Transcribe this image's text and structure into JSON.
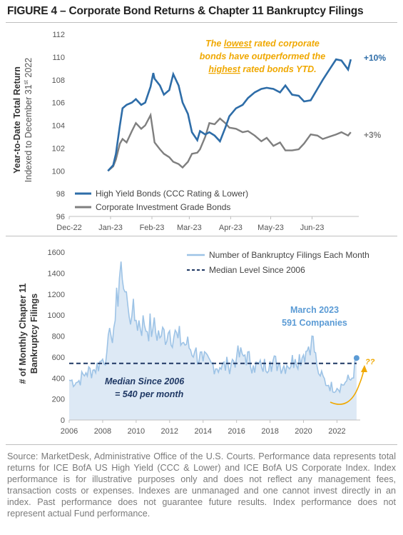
{
  "title": "FIGURE 4 – Corporate Bond Returns & Chapter 11 Bankruptcy Filings",
  "colors": {
    "hy": "#2e6da8",
    "ig": "#7f7f7f",
    "filings": "#9dc3e6",
    "filings_fill": "#dde9f5",
    "median": "#1f3864",
    "callout_text": "#2e6da8",
    "annotation_orange": "#f0a800"
  },
  "top_chart": {
    "ylabel_bold": "Year-to-Date Total Return",
    "ylabel_light_pre": "Indexed to December 31",
    "ylabel_light_sup": "st",
    "ylabel_light_post": " 2022",
    "annotation": {
      "line1_pre": "The ",
      "line1_u": "lowest",
      "line1_post": " rated corporate",
      "line2": "bonds have outperformed the",
      "line3_u": "highest",
      "line3_post": " rated bonds YTD."
    },
    "end_label_hy": "+10%",
    "end_label_ig": "+3%",
    "legend": [
      "High Yield Bonds (CCC Rating & Lower)",
      "Corporate Investment Grade Bonds"
    ]
  },
  "bottom_chart": {
    "ylabel_line1": "# of Monthly Chapter 11",
    "ylabel_line2": "Bankruptcy Filings",
    "legend": [
      "Number of Bankruptcy Filings Each Month",
      "Median Level Since 2006"
    ],
    "callout_line1": "March 2023",
    "callout_line2": "591 Companies",
    "median_line1": "Median Since 2006",
    "median_line2": "= 540 per month",
    "question": "??"
  },
  "source": "Source: MarketDesk, Administrative Office of the U.S. Courts. Performance data represents total returns for ICE BofA US High Yield (CCC & Lower) and ICE BofA US Corporate Index. Index performance is for illustrative purposes only and does not reflect any management fees, transaction costs or expenses. Indexes are unmanaged and one cannot invest directly in an index. Past performance does not guarantee future results. Index performance does not represent actual Fund performance.",
  "chart_data": [
    {
      "type": "line",
      "x_ticks": [
        "Dec-22",
        "Jan-23",
        "Feb-23",
        "Mar-23",
        "Apr-23",
        "May-23",
        "Jun-23"
      ],
      "ylim": [
        96,
        112
      ],
      "y_ticks": [
        96,
        98,
        100,
        102,
        104,
        106,
        108,
        110,
        112
      ],
      "ylabel": "Year-to-Date Total Return",
      "legend_position": "bottom-left",
      "series": [
        {
          "name": "High Yield Bonds (CCC Rating & Lower)",
          "x": [
            "2022-12-30",
            "2023-01-03",
            "2023-01-05",
            "2023-01-08",
            "2023-01-10",
            "2023-01-13",
            "2023-01-17",
            "2023-01-20",
            "2023-01-24",
            "2023-01-27",
            "2023-01-31",
            "2023-02-02",
            "2023-02-03",
            "2023-02-07",
            "2023-02-10",
            "2023-02-14",
            "2023-02-17",
            "2023-02-21",
            "2023-02-24",
            "2023-02-28",
            "2023-03-03",
            "2023-03-07",
            "2023-03-09",
            "2023-03-13",
            "2023-03-16",
            "2023-03-20",
            "2023-03-24",
            "2023-03-28",
            "2023-03-31",
            "2023-04-05",
            "2023-04-10",
            "2023-04-14",
            "2023-04-19",
            "2023-04-24",
            "2023-04-28",
            "2023-05-03",
            "2023-05-08",
            "2023-05-12",
            "2023-05-17",
            "2023-05-22",
            "2023-05-26",
            "2023-05-31",
            "2023-06-05",
            "2023-06-09",
            "2023-06-14",
            "2023-06-19",
            "2023-06-23",
            "2023-06-28",
            "2023-06-30"
          ],
          "values": [
            100,
            100.5,
            101.5,
            104,
            105.5,
            105.8,
            106,
            106.3,
            105.8,
            106,
            107.4,
            108.6,
            108.1,
            107.5,
            106.7,
            107.1,
            108.5,
            107.5,
            106,
            105,
            103.4,
            102.7,
            103.5,
            103.2,
            103.4,
            103.1,
            102.6,
            103.8,
            104.8,
            105.5,
            105.8,
            106.4,
            106.9,
            107.2,
            107.3,
            107.2,
            106.9,
            107.5,
            106.7,
            106.6,
            106.1,
            106.2,
            107.2,
            108,
            108.9,
            109.8,
            109.7,
            108.9,
            109.8
          ]
        },
        {
          "name": "Corporate Investment Grade Bonds",
          "x": [
            "2022-12-30",
            "2023-01-03",
            "2023-01-05",
            "2023-01-08",
            "2023-01-10",
            "2023-01-13",
            "2023-01-17",
            "2023-01-20",
            "2023-01-24",
            "2023-01-27",
            "2023-01-31",
            "2023-02-02",
            "2023-02-03",
            "2023-02-07",
            "2023-02-10",
            "2023-02-14",
            "2023-02-17",
            "2023-02-21",
            "2023-02-24",
            "2023-02-28",
            "2023-03-03",
            "2023-03-07",
            "2023-03-09",
            "2023-03-13",
            "2023-03-16",
            "2023-03-20",
            "2023-03-24",
            "2023-03-28",
            "2023-03-31",
            "2023-04-05",
            "2023-04-10",
            "2023-04-14",
            "2023-04-19",
            "2023-04-24",
            "2023-04-28",
            "2023-05-03",
            "2023-05-08",
            "2023-05-12",
            "2023-05-17",
            "2023-05-22",
            "2023-05-26",
            "2023-05-31",
            "2023-06-05",
            "2023-06-09",
            "2023-06-14",
            "2023-06-19",
            "2023-06-23",
            "2023-06-28",
            "2023-06-30"
          ],
          "values": [
            100,
            100.4,
            101,
            102.4,
            102.8,
            102.5,
            103.5,
            104.2,
            103.7,
            104,
            104.9,
            103.3,
            102.5,
            101.9,
            101.5,
            101.2,
            100.8,
            100.6,
            100.3,
            100.8,
            101.5,
            101.6,
            101.9,
            103,
            104.2,
            104.1,
            104.6,
            104.2,
            103.8,
            103.7,
            103.4,
            103.5,
            103.1,
            102.6,
            102.9,
            102.2,
            102.5,
            101.8,
            101.8,
            101.9,
            102.4,
            103.2,
            103.1,
            102.8,
            103,
            103.2,
            103.4,
            103.1,
            103.4
          ]
        }
      ]
    },
    {
      "type": "area",
      "ylabel": "# of Monthly Chapter 11 Bankruptcy Filings",
      "x_ticks": [
        2006,
        2008,
        2010,
        2012,
        2014,
        2016,
        2018,
        2020,
        2022
      ],
      "y_ticks": [
        0,
        200,
        400,
        600,
        800,
        1000,
        1200,
        1400,
        1600
      ],
      "xlim": [
        2006,
        2023.6
      ],
      "ylim": [
        0,
        1600
      ],
      "legend_position": "top-right",
      "median_value": 540,
      "series": [
        {
          "name": "Number of Bankruptcy Filings Each Month",
          "x": [
            2006.0,
            2006.5,
            2007.0,
            2007.5,
            2008.0,
            2008.25,
            2008.5,
            2008.75,
            2009.0,
            2009.1,
            2009.25,
            2009.5,
            2009.75,
            2010.0,
            2010.5,
            2011.0,
            2011.5,
            2012.0,
            2012.5,
            2013.0,
            2013.5,
            2014.0,
            2014.5,
            2015.0,
            2015.5,
            2016.0,
            2016.5,
            2017.0,
            2017.5,
            2018.0,
            2018.5,
            2019.0,
            2019.5,
            2020.0,
            2020.3,
            2020.5,
            2020.8,
            2021.0,
            2021.5,
            2022.0,
            2022.5,
            2022.9,
            2023.17
          ],
          "values": [
            380,
            360,
            450,
            480,
            580,
            650,
            800,
            950,
            1350,
            1510,
            1250,
            1100,
            1000,
            950,
            900,
            870,
            800,
            850,
            780,
            720,
            650,
            560,
            540,
            500,
            520,
            600,
            620,
            520,
            500,
            560,
            530,
            520,
            580,
            620,
            700,
            800,
            520,
            420,
            330,
            300,
            360,
            400,
            591
          ]
        }
      ]
    }
  ]
}
